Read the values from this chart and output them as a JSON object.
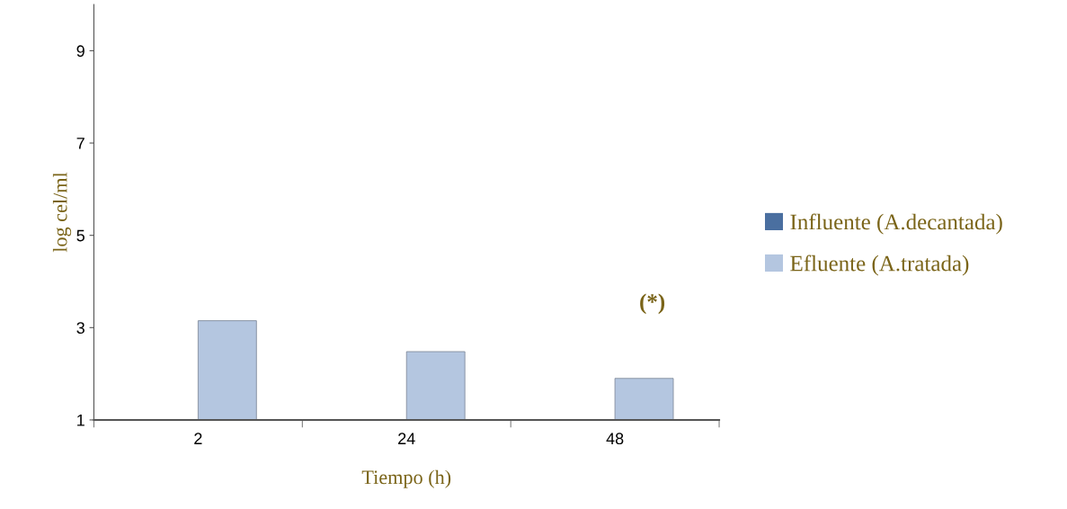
{
  "chart_data": {
    "type": "bar",
    "xlabel": "Tiempo (h)",
    "ylabel": "log cel/ml",
    "categories": [
      "2",
      "24",
      "48"
    ],
    "series": [
      {
        "name": "Influente (A.decantada)",
        "color": "#4a6fa0",
        "values": [
          null,
          null,
          null
        ]
      },
      {
        "name": "Efluente (A.tratada)",
        "color": "#b4c6e0",
        "values": [
          3.15,
          2.48,
          1.9
        ]
      }
    ],
    "ylim": [
      1,
      10
    ],
    "yticks": [
      1,
      3,
      5,
      7,
      9
    ],
    "grid": false,
    "legend": "right",
    "annotations": [
      "(*)"
    ]
  }
}
